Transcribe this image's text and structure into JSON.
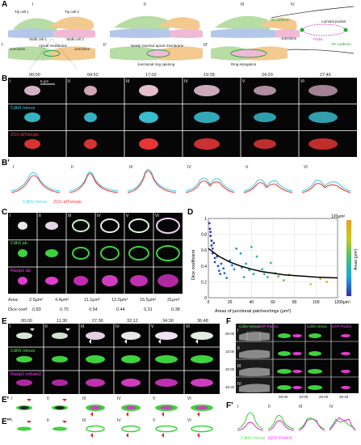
{
  "panelA": {
    "label": "A",
    "stages": [
      "I",
      "II",
      "III",
      "IV"
    ],
    "stages_prime": [
      "I'",
      "II'",
      "III'"
    ],
    "text": {
      "tip_cell_1": "Tip cell 1",
      "tip_cell_2": "Tip cell 2",
      "stalk_cell_1": "Stalk cell 1",
      "stalk_cell_2": "Stalk cell 2",
      "junctions_left": "Junctions",
      "apical_membrane": "Apical membrane",
      "junctions_right": "Junctions",
      "newly_inserted": "Newly inserted apical membrane",
      "junctional_ring": "Junctional ring opening",
      "ring_elongation": "Ring elongation",
      "ve_cadherin_1": "VE-cadherin",
      "luminal_pocket": "Luminal pocket",
      "junctions_iv": "Junctions",
      "podxl": "Podxl",
      "ve_cadherin_2": "VE-cadherin"
    },
    "colors": {
      "cell_green": "#b7dca4",
      "cell_orange": "#f3c98f",
      "cell_blue": "#b3c8e8",
      "cell_pink": "#f0b9d6",
      "vecad": "#28a43c",
      "podxl": "#e23ccf"
    }
  },
  "panelB": {
    "label": "B",
    "times": [
      "00:00",
      "04:52",
      "17:02",
      "19:28",
      "24:20",
      "27:46"
    ],
    "romans": [
      "I",
      "II",
      "III",
      "IV",
      "V",
      "VI"
    ],
    "scale": "5 μm",
    "row_labels": [
      "Cdh5-Venus",
      "ZO1-tdTomato"
    ]
  },
  "panelBprime": {
    "label": "B'",
    "romans": [
      "I",
      "II",
      "III",
      "IV",
      "V",
      "VI"
    ],
    "legend_cyan": "Cdh5-Venus",
    "legend_red": "ZO1-tdTomato"
  },
  "panelC": {
    "label": "C",
    "romans": [
      "I",
      "II",
      "III",
      "IV",
      "V",
      "VI"
    ],
    "row_labels": [
      "Cdh5 ab",
      "Rasip1 ab"
    ],
    "area_label": "Area:",
    "areas": [
      "2.5μm²",
      "4.4μm²",
      "11.1μm²",
      "12.0μm²",
      "15.5μm²",
      "31μm²"
    ],
    "dice_label": "Dice coef:",
    "dice": [
      "0.83",
      "0.70",
      "0.54",
      "0.44",
      "0.31",
      "0.38"
    ]
  },
  "panelD": {
    "label": "D"
  },
  "chart_data": {
    "type": "scatter",
    "xlabel": "Areas of junctional patches/rings (μm²)",
    "ylabel": "Dice coefficient",
    "xlim": [
      0,
      120
    ],
    "ylim": [
      0,
      1
    ],
    "xticks": [
      0,
      20,
      40,
      60,
      80,
      100,
      120
    ],
    "yticks": [
      0,
      0.2,
      0.4,
      0.6,
      0.8,
      1
    ],
    "colorbar_label": "Areas (μm²)",
    "colorbar_max": "120μm²",
    "colorbar_min": "0μm²",
    "points": [
      {
        "x": 1,
        "y": 0.94
      },
      {
        "x": 1.5,
        "y": 0.87
      },
      {
        "x": 2,
        "y": 0.83
      },
      {
        "x": 2,
        "y": 0.78
      },
      {
        "x": 3,
        "y": 0.72
      },
      {
        "x": 3,
        "y": 0.66
      },
      {
        "x": 4,
        "y": 0.62
      },
      {
        "x": 4,
        "y": 0.56
      },
      {
        "x": 5,
        "y": 0.69
      },
      {
        "x": 6,
        "y": 0.5
      },
      {
        "x": 6,
        "y": 0.45
      },
      {
        "x": 8,
        "y": 0.52
      },
      {
        "x": 9,
        "y": 0.4
      },
      {
        "x": 10,
        "y": 0.34
      },
      {
        "x": 11,
        "y": 0.3
      },
      {
        "x": 12,
        "y": 0.43
      },
      {
        "x": 14,
        "y": 0.37
      },
      {
        "x": 15,
        "y": 0.31
      },
      {
        "x": 17,
        "y": 0.25
      },
      {
        "x": 20,
        "y": 0.47
      },
      {
        "x": 22,
        "y": 0.41
      },
      {
        "x": 24,
        "y": 0.36
      },
      {
        "x": 26,
        "y": 0.62
      },
      {
        "x": 30,
        "y": 0.56
      },
      {
        "x": 31,
        "y": 0.38
      },
      {
        "x": 33,
        "y": 0.26
      },
      {
        "x": 35,
        "y": 0.43
      },
      {
        "x": 38,
        "y": 0.35
      },
      {
        "x": 40,
        "y": 0.64
      },
      {
        "x": 42,
        "y": 0.3
      },
      {
        "x": 45,
        "y": 0.52
      },
      {
        "x": 50,
        "y": 0.36
      },
      {
        "x": 52,
        "y": 0.3
      },
      {
        "x": 55,
        "y": 0.26
      },
      {
        "x": 58,
        "y": 0.44
      },
      {
        "x": 62,
        "y": 0.31
      },
      {
        "x": 65,
        "y": 0.27
      },
      {
        "x": 70,
        "y": 0.22
      },
      {
        "x": 75,
        "y": 0.29
      },
      {
        "x": 95,
        "y": 0.17
      },
      {
        "x": 104,
        "y": 0.24
      },
      {
        "x": 110,
        "y": 0.2
      }
    ],
    "fit_curve": [
      {
        "x": 0,
        "y": 0.62
      },
      {
        "x": 10,
        "y": 0.52
      },
      {
        "x": 20,
        "y": 0.45
      },
      {
        "x": 30,
        "y": 0.4
      },
      {
        "x": 40,
        "y": 0.36
      },
      {
        "x": 50,
        "y": 0.33
      },
      {
        "x": 60,
        "y": 0.31
      },
      {
        "x": 70,
        "y": 0.29
      },
      {
        "x": 80,
        "y": 0.28
      },
      {
        "x": 90,
        "y": 0.27
      },
      {
        "x": 100,
        "y": 0.26
      },
      {
        "x": 110,
        "y": 0.255
      },
      {
        "x": 120,
        "y": 0.25
      }
    ]
  },
  "panelE": {
    "label": "E",
    "times": [
      "00:00",
      "11:30",
      "27:36",
      "32:12",
      "34:30",
      "36:48"
    ],
    "romans": [
      "I",
      "II",
      "III",
      "IV",
      "V",
      "VI"
    ],
    "row_labels": [
      "Cdh5-Venus",
      "Rasip1-mKate2"
    ]
  },
  "panelEprime": {
    "label": "E'",
    "romans": [
      "I",
      "II",
      "III",
      "IV",
      "V",
      "VI"
    ]
  },
  "panelEdouble": {
    "label": "E''",
    "romans": [
      "I",
      "II",
      "III",
      "IV",
      "V",
      "VI"
    ]
  },
  "panelF": {
    "label": "F",
    "header_green": "Cdh5-Venus",
    "header_mag": "GFP-Podxl1",
    "times_left": [
      "00:00",
      "10:00",
      "20:00",
      "46:40"
    ],
    "romans": [
      "I",
      "II",
      "III",
      "IV"
    ],
    "times_bottom": [
      "00:00",
      "10:00",
      "20:00",
      "46:40"
    ]
  },
  "panelFprime": {
    "label": "F'",
    "romans": [
      "I",
      "II",
      "III",
      "IV"
    ],
    "legend_green": "Cdh5-Venus",
    "legend_mag": "GFP-Podxl1"
  }
}
